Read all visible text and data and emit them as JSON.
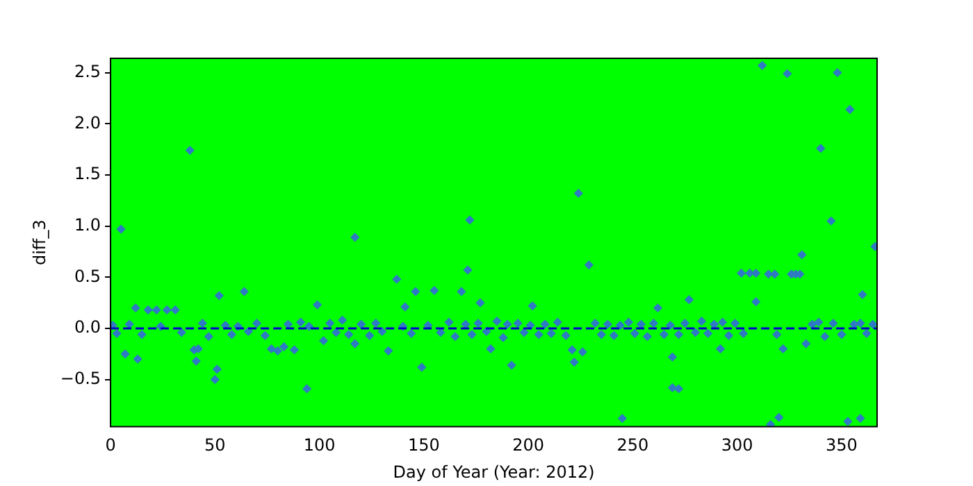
{
  "chart_data": {
    "type": "scatter",
    "xlabel": "Day of Year (Year: 2012)",
    "ylabel": "diff_3",
    "xlim": [
      0,
      367
    ],
    "ylim": [
      -0.96,
      2.64
    ],
    "xticks": [
      0,
      50,
      100,
      150,
      200,
      250,
      300,
      350
    ],
    "yticks": [
      {
        "value": -0.5,
        "label": "−0.5"
      },
      {
        "value": 0,
        "label": "0.0"
      },
      {
        "value": 0.5,
        "label": "0.5"
      },
      {
        "value": 1,
        "label": "1.0"
      },
      {
        "value": 1.5,
        "label": "1.5"
      },
      {
        "value": 2,
        "label": "2.0"
      },
      {
        "value": 2.5,
        "label": "2.5"
      }
    ],
    "grid": false,
    "legend": false,
    "marker": "diamond",
    "ref_lines": [
      {
        "axis": "y",
        "value": 0,
        "color": "#0000cd",
        "line_style": "dashed"
      }
    ],
    "series": [
      {
        "color": "#2f7ac4",
        "x": [
          1,
          3,
          5,
          7,
          9,
          12,
          13,
          15,
          18,
          22,
          24,
          27,
          31,
          34,
          38,
          40,
          41,
          42,
          44,
          47,
          50,
          51,
          52,
          55,
          58,
          61,
          64,
          66,
          70,
          74,
          77,
          80,
          83,
          85,
          88,
          91,
          94,
          95,
          99,
          102,
          105,
          108,
          111,
          114,
          117,
          117,
          120,
          124,
          127,
          130,
          133,
          137,
          140,
          141,
          144,
          146,
          149,
          152,
          155,
          158,
          162,
          165,
          168,
          170,
          171,
          172,
          173,
          176,
          177,
          180,
          182,
          185,
          188,
          190,
          192,
          195,
          198,
          201,
          202,
          205,
          208,
          211,
          214,
          218,
          221,
          222,
          224,
          226,
          229,
          232,
          235,
          238,
          241,
          244,
          245,
          248,
          251,
          254,
          257,
          260,
          262,
          265,
          268,
          269,
          269,
          272,
          272,
          275,
          277,
          280,
          283,
          286,
          289,
          292,
          293,
          296,
          299,
          302,
          303,
          306,
          309,
          309,
          312,
          315,
          316,
          318,
          319,
          320,
          322,
          324,
          326,
          328,
          330,
          331,
          333,
          336,
          339,
          340,
          342,
          345,
          346,
          348,
          350,
          353,
          354,
          356,
          359,
          359,
          360,
          362,
          365,
          366
        ],
        "values": [
          0.03,
          -0.05,
          0.97,
          -0.25,
          0.04,
          0.2,
          -0.3,
          -0.06,
          0.18,
          0.18,
          0.02,
          0.18,
          0.18,
          -0.04,
          1.74,
          -0.21,
          -0.32,
          -0.2,
          0.05,
          -0.08,
          -0.5,
          -0.4,
          0.32,
          0.03,
          -0.06,
          0.02,
          0.36,
          -0.03,
          0.05,
          -0.07,
          -0.2,
          -0.22,
          -0.18,
          0.04,
          -0.21,
          0.06,
          -0.59,
          0.02,
          0.23,
          -0.12,
          0.05,
          -0.04,
          0.08,
          -0.06,
          0.89,
          -0.15,
          0.04,
          -0.07,
          0.05,
          -0.03,
          -0.22,
          0.48,
          0.02,
          0.21,
          -0.05,
          0.36,
          -0.38,
          0.03,
          0.37,
          -0.04,
          0.06,
          -0.08,
          0.36,
          0.04,
          0.57,
          1.06,
          -0.06,
          0.05,
          0.25,
          -0.03,
          -0.2,
          0.07,
          -0.09,
          0.04,
          -0.36,
          0.05,
          -0.04,
          0.03,
          0.22,
          -0.06,
          0.04,
          -0.05,
          0.06,
          -0.07,
          -0.21,
          -0.33,
          1.32,
          -0.23,
          0.62,
          0.05,
          -0.06,
          0.04,
          -0.07,
          0.03,
          -0.88,
          0.06,
          -0.05,
          0.04,
          -0.08,
          0.05,
          0.2,
          -0.06,
          0.03,
          -0.28,
          -0.58,
          -0.06,
          -0.59,
          0.05,
          0.28,
          -0.04,
          0.07,
          -0.05,
          0.04,
          -0.2,
          0.06,
          -0.07,
          0.05,
          0.54,
          -0.05,
          0.54,
          0.54,
          0.26,
          2.57,
          0.53,
          -0.94,
          0.53,
          -0.06,
          -0.87,
          -0.2,
          2.49,
          0.53,
          0.53,
          0.53,
          0.72,
          -0.15,
          0.04,
          0.06,
          1.76,
          -0.08,
          1.05,
          0.05,
          2.5,
          -0.06,
          -0.91,
          2.14,
          0.04,
          -0.88,
          0.05,
          0.33,
          -0.05,
          0.04,
          0.8
        ]
      }
    ]
  }
}
